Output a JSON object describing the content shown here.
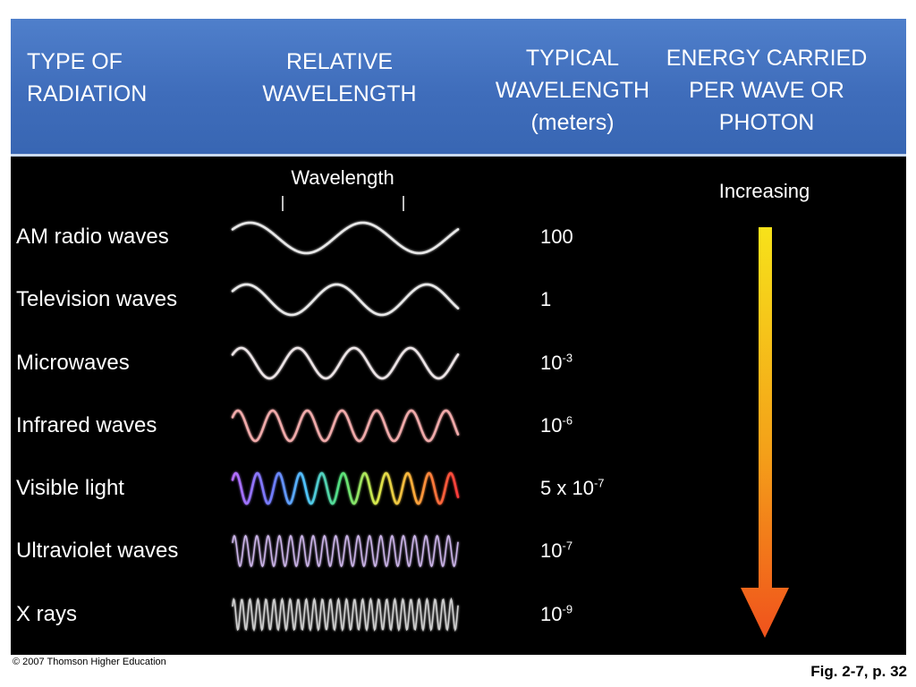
{
  "header": {
    "col_type": "TYPE OF\nRADIATION",
    "col_relative": "RELATIVE\nWAVELENGTH",
    "col_typical": "TYPICAL\nWAVELENGTH\n(meters)",
    "col_energy": "ENERGY CARRIED\nPER WAVE OR\nPHOTON"
  },
  "wavelength_label": "Wavelength",
  "energy_label": "Increasing",
  "rows": [
    {
      "name": "AM radio waves",
      "value_base": "100",
      "value_exp": "",
      "cycles": 2,
      "color": "rainbow-none",
      "stroke": "#e8e8e8"
    },
    {
      "name": "Television waves",
      "value_base": "1",
      "value_exp": "",
      "cycles": 2.5,
      "color": "none",
      "stroke": "#e8e8e8"
    },
    {
      "name": "Microwaves",
      "value_base": "10",
      "value_exp": "-3",
      "cycles": 4,
      "color": "none",
      "stroke": "#ece4e6"
    },
    {
      "name": "Infrared waves",
      "value_base": "10",
      "value_exp": "-6",
      "cycles": 6.5,
      "color": "none",
      "stroke": "#f0aaaa"
    },
    {
      "name": "Visible light",
      "value_base": "5 x 10",
      "value_exp": "-7",
      "cycles": 10.5,
      "color": "rainbow",
      "stroke": "#ffffff"
    },
    {
      "name": "Ultraviolet waves",
      "value_base": "10",
      "value_exp": "-7",
      "cycles": 20,
      "color": "none",
      "stroke": "#c9b2e6"
    },
    {
      "name": "X rays",
      "value_base": "10",
      "value_exp": "-9",
      "cycles": 28,
      "color": "none",
      "stroke": "#cfcfcf"
    }
  ],
  "colors": {
    "header_blue": "#4576c4",
    "background": "#000000",
    "arrow_top": "#f7e21a",
    "arrow_bottom": "#f0521c"
  },
  "footer": {
    "copyright": "© 2007 Thomson Higher Education",
    "figure_ref": "Fig. 2-7, p. 32"
  }
}
